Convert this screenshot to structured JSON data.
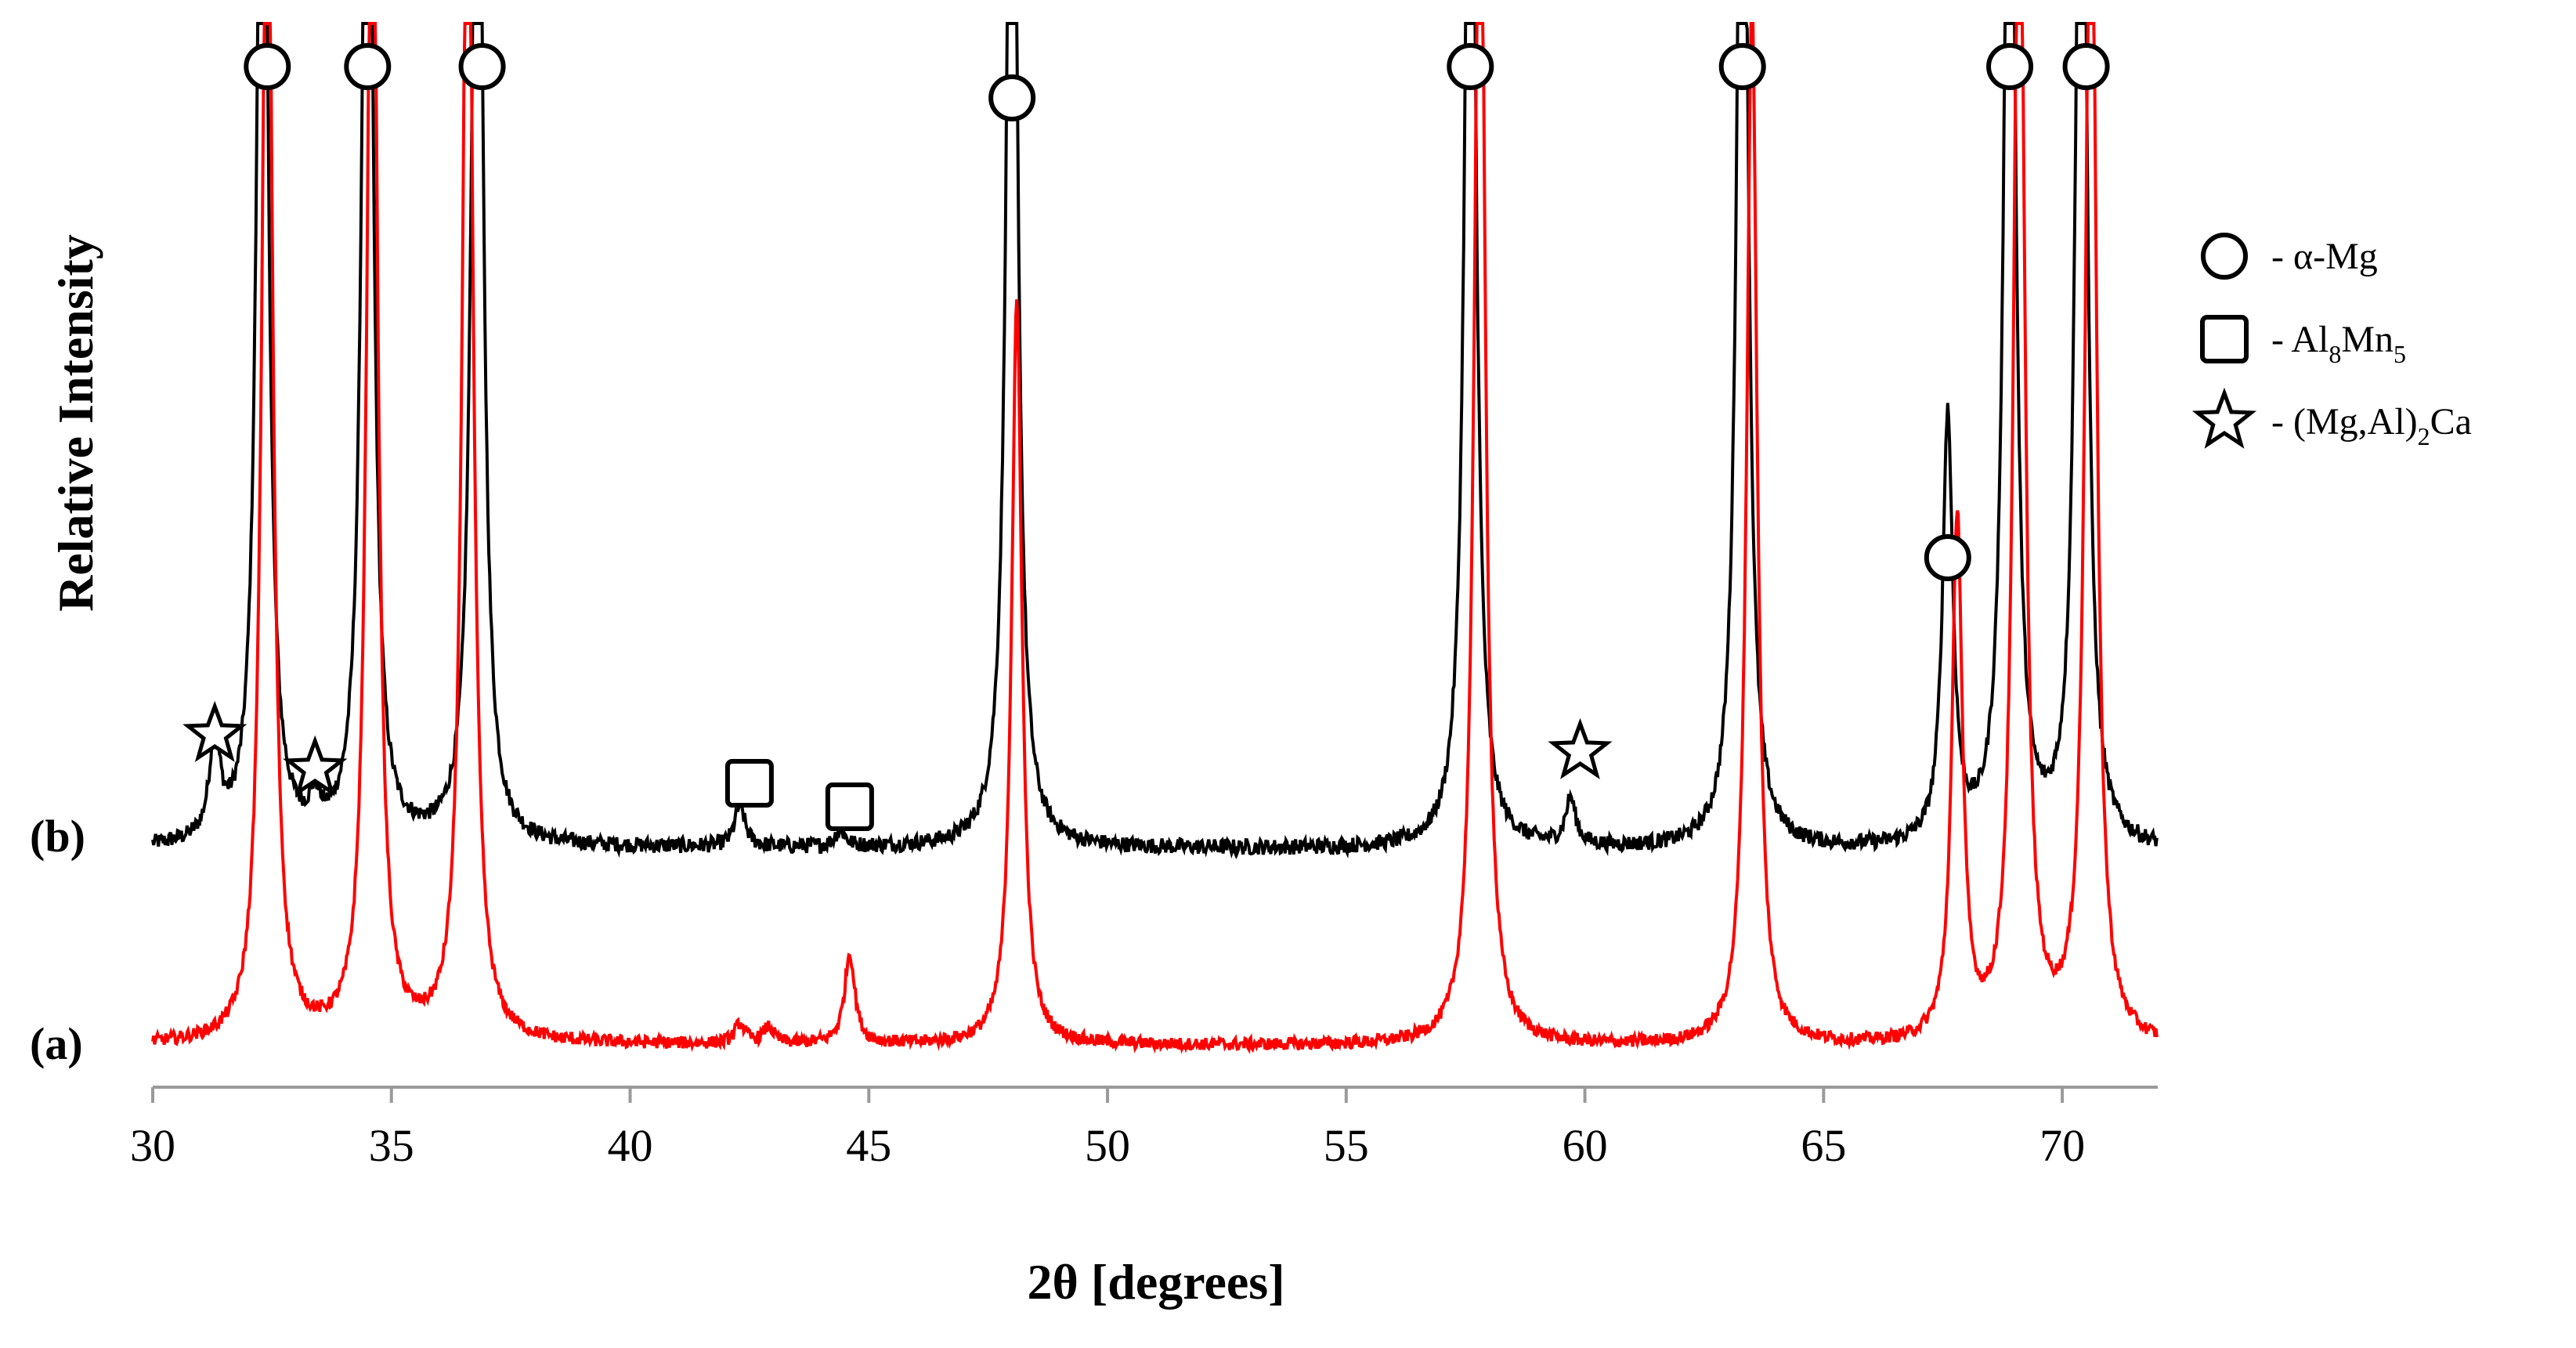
{
  "chart_data": {
    "type": "line",
    "xlabel": "2θ [degrees]",
    "ylabel": "Relative Intensity",
    "xlim": [
      30,
      72
    ],
    "x_ticks": [
      "30",
      "35",
      "40",
      "45",
      "50",
      "55",
      "60",
      "65",
      "70"
    ],
    "grid": false,
    "legend_placement": "right",
    "series": [
      {
        "name": "(b)",
        "color": "#000000",
        "peaks": [
          [
            31.3,
            0.62
          ],
          [
            32.3,
            8.0
          ],
          [
            33.4,
            0.18
          ],
          [
            34.5,
            8.0
          ],
          [
            36.8,
            8.0
          ],
          [
            42.3,
            0.25
          ],
          [
            44.4,
            0.1
          ],
          [
            48.0,
            8.0
          ],
          [
            57.6,
            8.0
          ],
          [
            59.7,
            0.28
          ],
          [
            63.3,
            8.0
          ],
          [
            67.6,
            2.6
          ],
          [
            68.9,
            8.0
          ],
          [
            70.4,
            8.0
          ]
        ]
      },
      {
        "name": "(a)",
        "color": "#ff0000",
        "peaks": [
          [
            32.4,
            8.0
          ],
          [
            34.6,
            8.0
          ],
          [
            36.6,
            8.0
          ],
          [
            42.3,
            0.12
          ],
          [
            42.9,
            0.1
          ],
          [
            44.6,
            0.55
          ],
          [
            48.1,
            4.5
          ],
          [
            57.8,
            8.0
          ],
          [
            63.5,
            6.4
          ],
          [
            67.8,
            3.2
          ],
          [
            69.1,
            8.0
          ],
          [
            70.6,
            8.0
          ]
        ]
      }
    ],
    "phase_markers": [
      {
        "phase": "α-Mg",
        "symbol": "circle",
        "positions": [
          32.4,
          34.5,
          36.9,
          48.0,
          57.6,
          63.3,
          67.6,
          68.9,
          70.5
        ]
      },
      {
        "phase": "Al8Mn5",
        "symbol": "square",
        "positions": [
          42.5,
          44.6
        ]
      },
      {
        "phase": "(Mg,Al)2Ca",
        "symbol": "star",
        "positions": [
          31.3,
          33.4,
          59.9
        ]
      }
    ],
    "legend": [
      {
        "symbol": "circle",
        "text": "- α-Mg"
      },
      {
        "symbol": "square",
        "text_parts": [
          "- Al",
          "8",
          "Mn",
          "5"
        ]
      },
      {
        "symbol": "star",
        "text_parts": [
          "- (Mg,Al)",
          "2",
          "Ca"
        ]
      }
    ]
  }
}
